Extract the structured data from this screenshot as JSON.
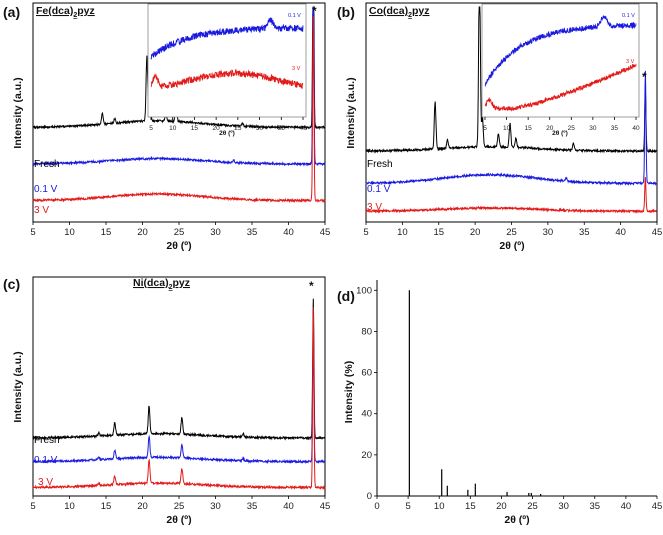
{
  "figure": {
    "background": "#ffffff"
  },
  "colors": {
    "fresh": "#000000",
    "v01": "#1a1adf",
    "v3": "#e31a1a",
    "axis": "#000000"
  },
  "chart_data": [
    {
      "id": "a",
      "type": "line",
      "panel_label": "(a)",
      "title_parts": [
        "Fe(dca)",
        "2",
        "pyz"
      ],
      "xlabel": "2θ (º)",
      "ylabel": "Intensity (a.u.)",
      "xlim": [
        5,
        45
      ],
      "xticks": [
        5,
        10,
        15,
        20,
        25,
        30,
        35,
        40,
        45
      ],
      "ylim": [
        0,
        100
      ],
      "star": "*",
      "star_x": 43.5,
      "series": [
        {
          "name": "Fresh",
          "color": "#000000",
          "label": "Fresh",
          "offset": 44,
          "amp": 1,
          "hump": 3,
          "peaks": [
            [
              14.5,
              5
            ],
            [
              16.2,
              2
            ],
            [
              20.6,
              30
            ],
            [
              21.0,
              22
            ],
            [
              23.2,
              3
            ],
            [
              24.6,
              9
            ],
            [
              33.7,
              1.5
            ],
            [
              43.4,
              90
            ]
          ]
        },
        {
          "name": "0.1 V",
          "color": "#1a1adf",
          "label": "0.1 V",
          "offset": 27,
          "amp": 1,
          "hump": 2.5,
          "peaks": [
            [
              32.5,
              1
            ],
            [
              43.4,
              88
            ]
          ]
        },
        {
          "name": "3 V",
          "color": "#e31a1a",
          "label": "3 V",
          "offset": 10,
          "amp": 1,
          "hump": 3,
          "peaks": [
            [
              43.4,
              86
            ]
          ]
        }
      ],
      "inset": {
        "xlabel": "2θ (º)",
        "xlim": [
          5,
          40
        ],
        "xticks": [
          5,
          10,
          15,
          20,
          25,
          30,
          35,
          40
        ],
        "series": [
          {
            "name": "0.1 V",
            "color": "#1a1adf",
            "label": "0.1 V",
            "shape": "rise",
            "base": 55,
            "top": 82,
            "noise": 3,
            "bump": [
              32.5,
              8
            ]
          },
          {
            "name": "3 V",
            "color": "#e31a1a",
            "label": "3 V",
            "shape": "hump",
            "base": 22,
            "top": 40,
            "noise": 3,
            "bump": [
              6,
              10
            ]
          }
        ]
      }
    },
    {
      "id": "b",
      "type": "line",
      "panel_label": "(b)",
      "title_parts": [
        "Co(dca)",
        "2",
        "pyz"
      ],
      "xlabel": "2θ (º)",
      "ylabel": "Intensity (a.u.)",
      "xlim": [
        5,
        45
      ],
      "xticks": [
        5,
        10,
        15,
        20,
        25,
        30,
        35,
        40,
        45
      ],
      "ylim": [
        0,
        100
      ],
      "star": "*",
      "star_x": 43.5,
      "series": [
        {
          "name": "Fresh",
          "color": "#000000",
          "label": "Fresh",
          "offset": 33,
          "amp": 1,
          "hump": 2,
          "peaks": [
            [
              14.5,
              22
            ],
            [
              16.2,
              4
            ],
            [
              20.6,
              82
            ],
            [
              21.0,
              14
            ],
            [
              23.2,
              6
            ],
            [
              24.8,
              11
            ],
            [
              25.6,
              4
            ],
            [
              33.5,
              3
            ],
            [
              43.4,
              28
            ]
          ]
        },
        {
          "name": "0.1 V",
          "color": "#1a1adf",
          "label": "0.1 V",
          "offset": 18,
          "amp": 1,
          "hump": 4,
          "peaks": [
            [
              32.5,
              1.5
            ],
            [
              43.4,
              52
            ]
          ]
        },
        {
          "name": "3 V",
          "color": "#e31a1a",
          "label": "3 V",
          "offset": 5,
          "amp": 1,
          "hump": 1.5,
          "peaks": [
            [
              43.4,
              16
            ]
          ]
        }
      ],
      "inset": {
        "xlabel": "2θ (º)",
        "xlim": [
          5,
          40
        ],
        "xticks": [
          5,
          10,
          15,
          20,
          25,
          30,
          35,
          40
        ],
        "series": [
          {
            "name": "0.1 V",
            "color": "#1a1adf",
            "label": "0.1 V",
            "shape": "rise",
            "base": 30,
            "top": 85,
            "noise": 2.5,
            "bump": [
              32.5,
              10
            ]
          },
          {
            "name": "3 V",
            "color": "#e31a1a",
            "label": "3 V",
            "shape": "climb",
            "base": 8,
            "top": 48,
            "noise": 2,
            "bump": [
              6,
              8
            ]
          }
        ]
      }
    },
    {
      "id": "c",
      "type": "line",
      "panel_label": "(c)",
      "title_parts": [
        "Ni(dca)",
        "2",
        "pyz"
      ],
      "xlabel": "2θ (º)",
      "ylabel": "Intensity (a.u.)",
      "xlim": [
        5,
        45
      ],
      "xticks": [
        5,
        10,
        15,
        20,
        25,
        30,
        35,
        40,
        45
      ],
      "ylim": [
        0,
        100
      ],
      "star": "*",
      "star_x": 43.5,
      "series": [
        {
          "name": "Fresh",
          "color": "#000000",
          "label": "Fresh",
          "offset": 27,
          "amp": 1,
          "hump": 2,
          "peaks": [
            [
              14.0,
              1.5
            ],
            [
              16.2,
              6
            ],
            [
              20.9,
              13
            ],
            [
              25.4,
              8
            ],
            [
              33.8,
              1.5
            ],
            [
              43.4,
              65
            ]
          ]
        },
        {
          "name": "0.1 V",
          "color": "#1a1adf",
          "label": "0.1 V",
          "offset": 16,
          "amp": 1,
          "hump": 2,
          "peaks": [
            [
              14.0,
              1
            ],
            [
              16.2,
              4
            ],
            [
              20.9,
              10
            ],
            [
              25.4,
              6
            ],
            [
              33.8,
              1
            ],
            [
              43.4,
              60
            ]
          ]
        },
        {
          "name": "3 V",
          "color": "#e31a1a",
          "label": "3 V",
          "offset": 4,
          "amp": 1,
          "hump": 2,
          "peaks": [
            [
              14.0,
              1
            ],
            [
              16.2,
              4
            ],
            [
              20.9,
              11
            ],
            [
              25.4,
              7
            ],
            [
              43.4,
              84
            ]
          ]
        }
      ]
    },
    {
      "id": "d",
      "type": "bar",
      "panel_label": "(d)",
      "xlabel": "2θ (º)",
      "ylabel": "Intensity (%)",
      "xlim": [
        0,
        45
      ],
      "xticks": [
        0,
        5,
        10,
        15,
        20,
        25,
        30,
        35,
        40,
        45
      ],
      "ylim": [
        0,
        105
      ],
      "yticks": [
        0,
        20,
        40,
        60,
        80,
        100
      ],
      "x": [
        5.2,
        10.4,
        11.3,
        14.6,
        15.8,
        20.9,
        24.4,
        24.8,
        26.3
      ],
      "values": [
        100,
        13,
        5,
        3,
        6,
        2,
        1.5,
        1.5,
        1
      ]
    }
  ]
}
